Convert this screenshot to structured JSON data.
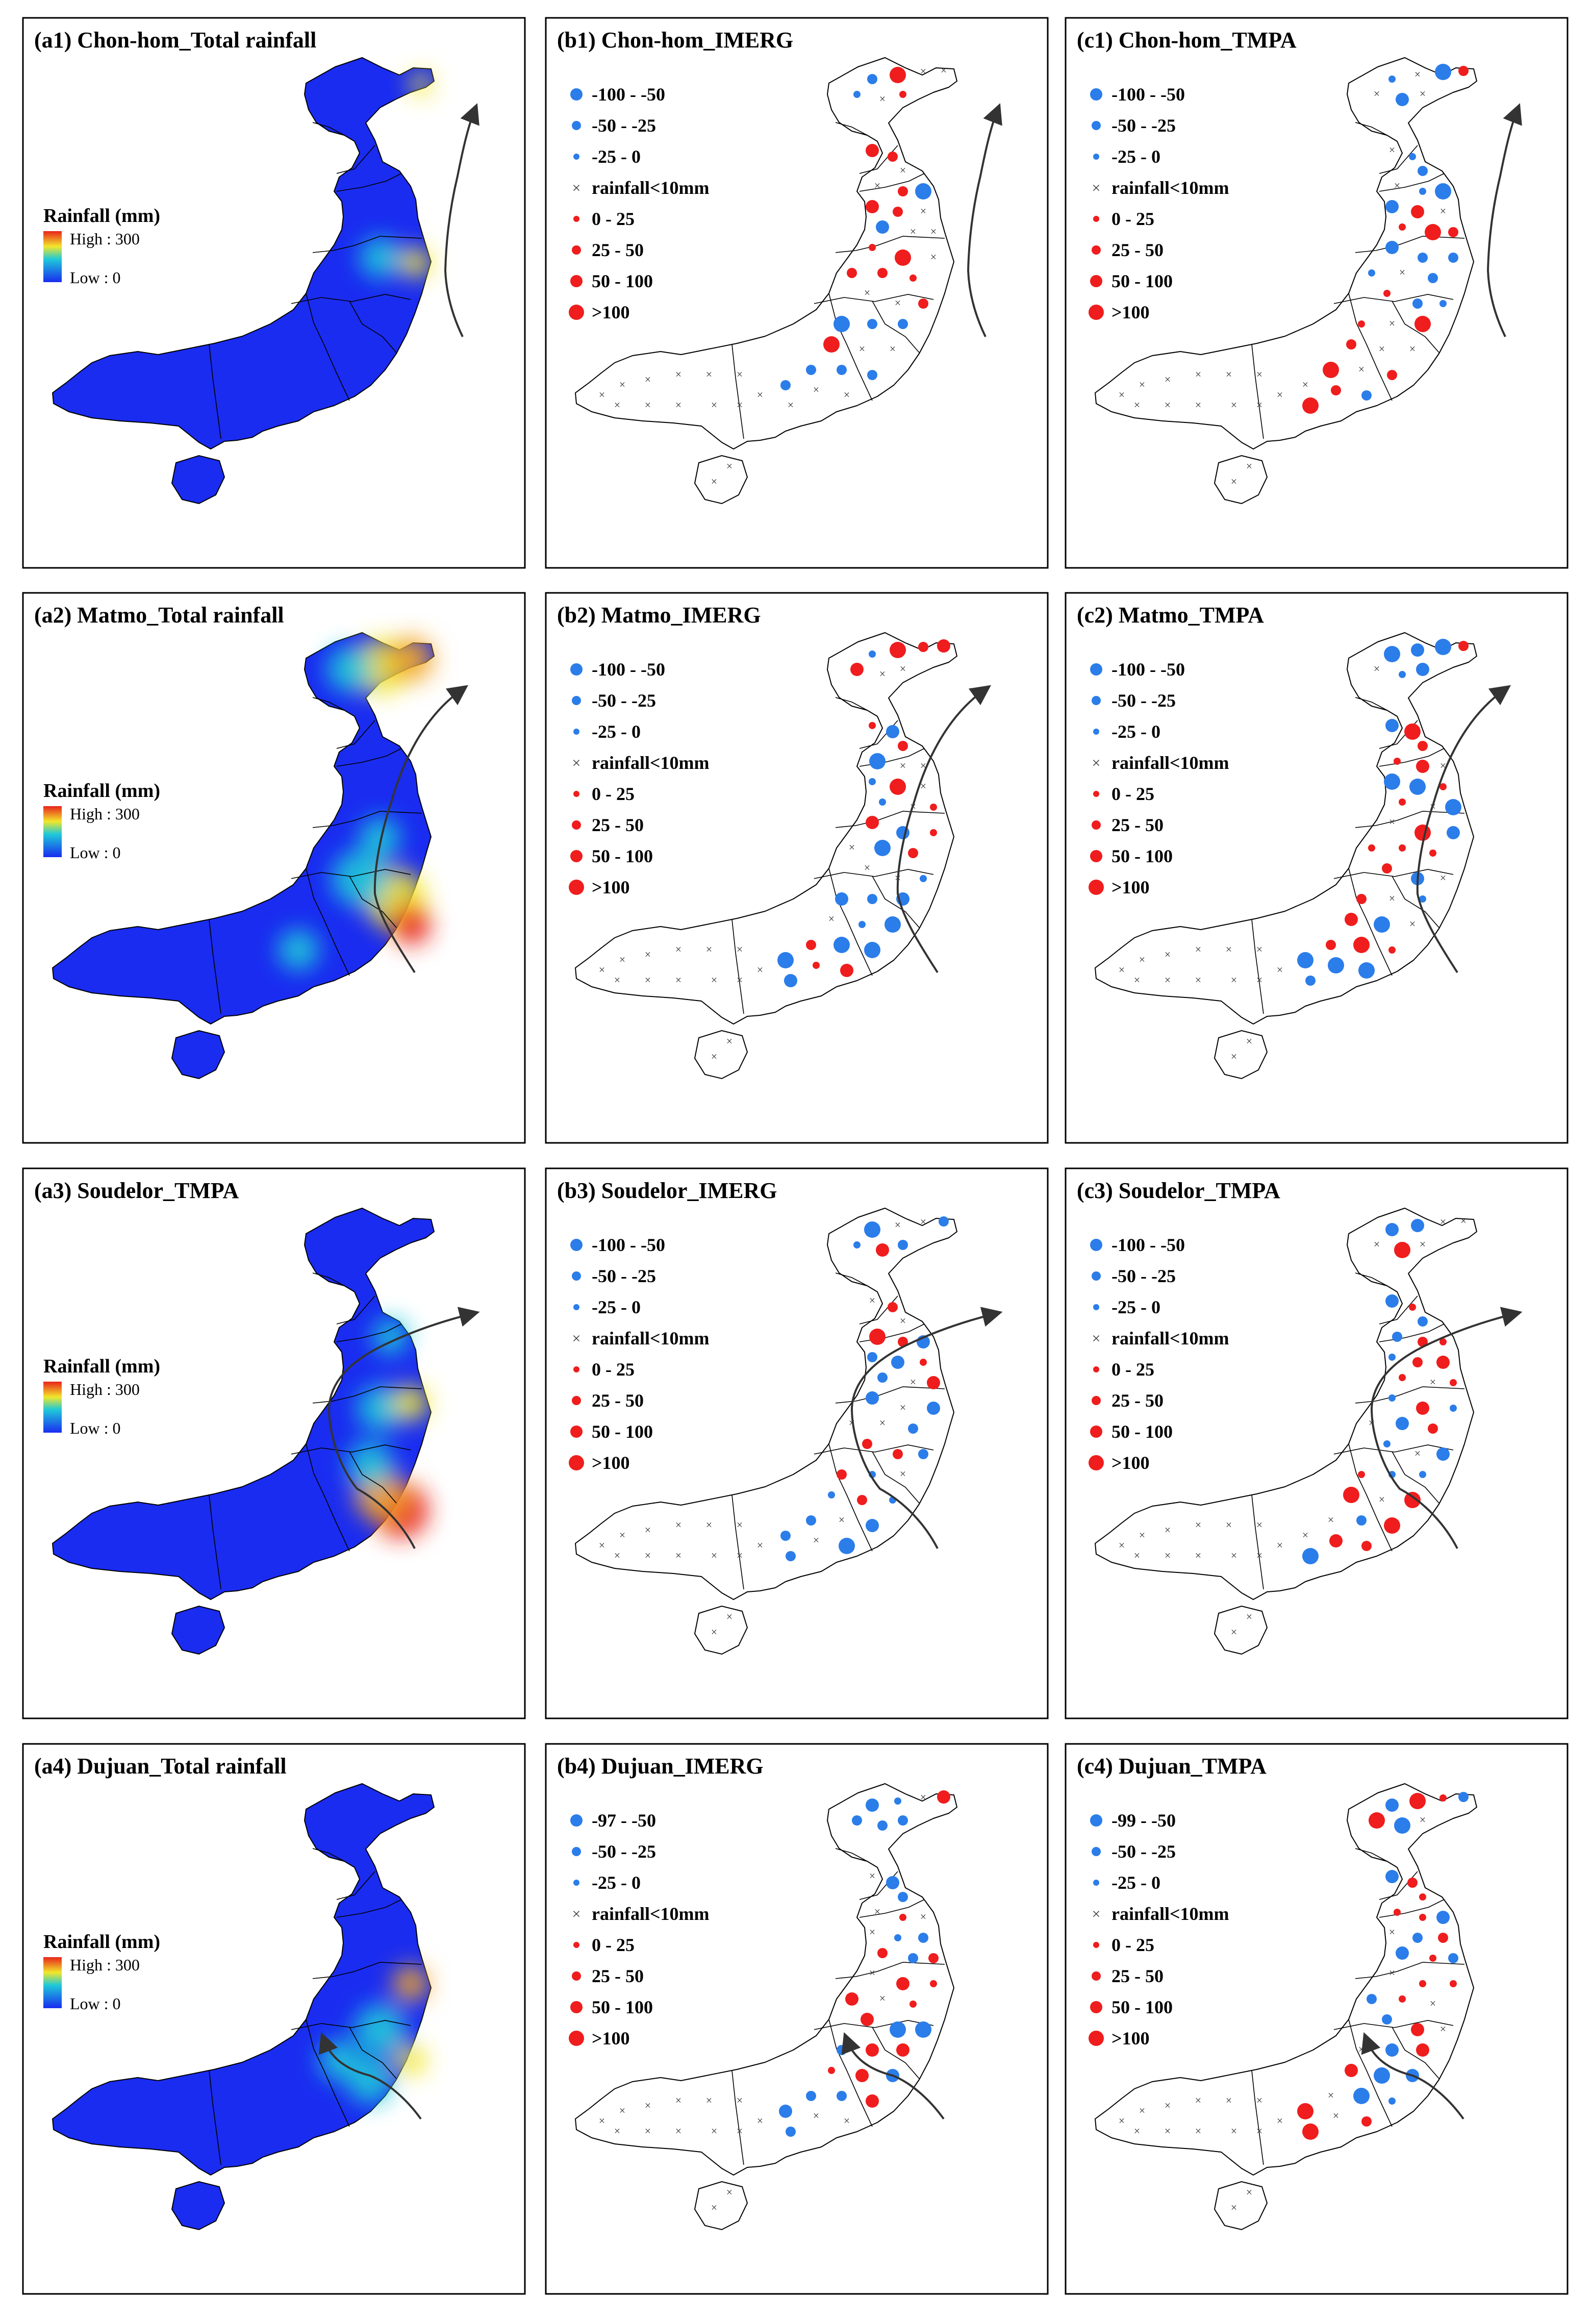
{
  "figure": {
    "colors": {
      "map_blue": "#1a2cf0",
      "ramp_high": "#e8231b",
      "ramp_mid": "#f2e72a",
      "ramp_low_mid": "#1ec9d9",
      "ramp_low": "#1a2cf0",
      "negative_dot": "#2b7de9",
      "positive_dot": "#ef1d1d",
      "outline": "#000000"
    },
    "rainfall_legend": {
      "title": "Rainfall (mm)",
      "high": "High : 300",
      "low": "Low : 0"
    },
    "dot_legend_default": [
      {
        "label": "-100 - -50",
        "symbol": "dot",
        "color": "blue",
        "size": "large"
      },
      {
        "label": "-50 - -25",
        "symbol": "dot",
        "color": "blue",
        "size": "medium"
      },
      {
        "label": "-25 - 0",
        "symbol": "dot",
        "color": "blue",
        "size": "small"
      },
      {
        "label": "rainfall<10mm",
        "symbol": "cross",
        "color": "black",
        "size": "small"
      },
      {
        "label": "0 - 25",
        "symbol": "dot",
        "color": "red",
        "size": "small"
      },
      {
        "label": "25 - 50",
        "symbol": "dot",
        "color": "red",
        "size": "medium"
      },
      {
        "label": "50 - 100",
        "symbol": "dot",
        "color": "red",
        "size": "large"
      },
      {
        "label": ">100",
        "symbol": "dot",
        "color": "red",
        "size": "xlarge"
      }
    ],
    "dot_legend_dujuan_imerg_first": "-97 - -50",
    "dot_legend_dujuan_tmpa_first": "-99 - -50",
    "panels": [
      {
        "id": "a1",
        "title": "(a1) Chon-hom_Total rainfall",
        "kind": "rainfall",
        "track": "chanhom"
      },
      {
        "id": "b1",
        "title": "(b1) Chon-hom_IMERG",
        "kind": "dots",
        "track": "chanhom"
      },
      {
        "id": "c1",
        "title": "(c1) Chon-hom_TMPA",
        "kind": "dots",
        "track": "chanhom"
      },
      {
        "id": "a2",
        "title": "(a2) Matmo_Total rainfall",
        "kind": "rainfall",
        "track": "matmo"
      },
      {
        "id": "b2",
        "title": "(b2) Matmo_IMERG",
        "kind": "dots",
        "track": "matmo"
      },
      {
        "id": "c2",
        "title": "(c2) Matmo_TMPA",
        "kind": "dots",
        "track": "matmo"
      },
      {
        "id": "a3",
        "title": "(a3) Soudelor_TMPA",
        "kind": "rainfall",
        "track": "soudelor"
      },
      {
        "id": "b3",
        "title": "(b3) Soudelor_IMERG",
        "kind": "dots",
        "track": "soudelor"
      },
      {
        "id": "c3",
        "title": "(c3) Soudelor_TMPA",
        "kind": "dots",
        "track": "soudelor"
      },
      {
        "id": "a4",
        "title": "(a4) Dujuan_Total rainfall",
        "kind": "rainfall",
        "track": "dujuan"
      },
      {
        "id": "b4",
        "title": "(b4) Dujuan_IMERG",
        "kind": "dots",
        "track": "dujuan"
      },
      {
        "id": "c4",
        "title": "(c4) Dujuan_TMPA",
        "kind": "dots",
        "track": "dujuan"
      }
    ]
  }
}
